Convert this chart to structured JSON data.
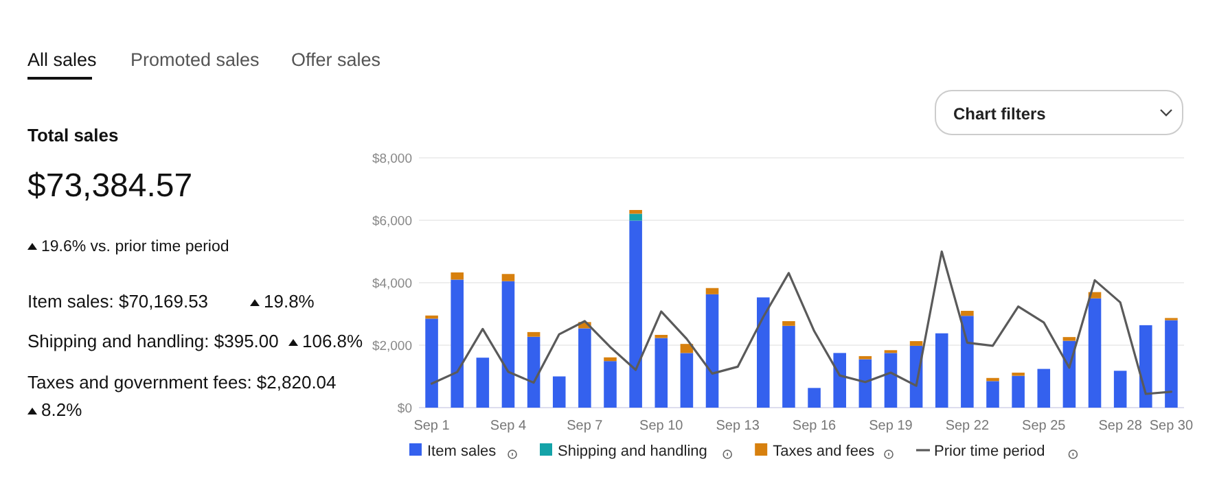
{
  "chart_data": {
    "type": "bar",
    "stacked": true,
    "grid": "y",
    "legend": "bottom",
    "annotations": [
      "All sales",
      "Promoted sales",
      "Offer sales",
      "Total sales",
      "$73,384.57",
      "19.6% vs. prior time period",
      "Item sales: $70,169.53",
      "19.8%",
      "Shipping and handling: $395.00",
      "106.8%",
      "Taxes and government fees: $2,820.04",
      "8.2%",
      "Chart filters"
    ],
    "categories": [
      "Sep 1",
      null,
      null,
      "Sep 4",
      null,
      null,
      "Sep 7",
      null,
      null,
      "Sep 10",
      null,
      null,
      "Sep 13",
      null,
      null,
      "Sep 16",
      null,
      null,
      "Sep 19",
      null,
      null,
      "Sep 22",
      null,
      null,
      "Sep 25",
      null,
      null,
      "Sep 28",
      null,
      "Sep 30"
    ],
    "ylim": [
      0,
      8000
    ],
    "yticks": [
      {
        "value": 0,
        "label": "$0"
      },
      {
        "value": 2000,
        "label": "$2,000"
      },
      {
        "value": 4000,
        "label": "$4,000"
      },
      {
        "value": 6000,
        "label": "$6,000"
      },
      {
        "value": 8000,
        "label": "$8,000"
      }
    ],
    "series": [
      {
        "name": "Item sales",
        "color": "#3461ee",
        "values": [
          2850,
          4100,
          1600,
          4050,
          2270,
          1000,
          2540,
          1490,
          5990,
          2230,
          1750,
          3630,
          null,
          3530,
          2620,
          630,
          1750,
          1550,
          1750,
          1980,
          2380,
          2940,
          850,
          1020,
          1240,
          2140,
          3500,
          1180,
          2640,
          2800
        ]
      },
      {
        "name": "Shipping and handling",
        "color": "#14a3a8",
        "values": [
          null,
          null,
          null,
          null,
          null,
          null,
          null,
          null,
          220,
          null,
          null,
          null,
          null,
          null,
          null,
          null,
          null,
          null,
          null,
          null,
          null,
          null,
          null,
          null,
          null,
          null,
          null,
          null,
          null,
          null
        ]
      },
      {
        "name": "Taxes and fees",
        "color": "#d7800e",
        "values": [
          100,
          230,
          null,
          230,
          150,
          null,
          200,
          120,
          120,
          100,
          290,
          200,
          null,
          null,
          150,
          null,
          null,
          100,
          90,
          150,
          null,
          160,
          100,
          100,
          null,
          120,
          200,
          null,
          null,
          70
        ]
      },
      {
        "name": "Prior time period",
        "type": "line",
        "color": "#5a5a5a",
        "values": [
          770,
          1140,
          2520,
          1150,
          800,
          2350,
          2770,
          1940,
          1210,
          3080,
          2200,
          1090,
          1310,
          2900,
          4310,
          2450,
          1030,
          820,
          1120,
          700,
          5000,
          2080,
          1980,
          3240,
          2730,
          1280,
          4080,
          3370,
          440,
          510
        ]
      }
    ]
  }
}
